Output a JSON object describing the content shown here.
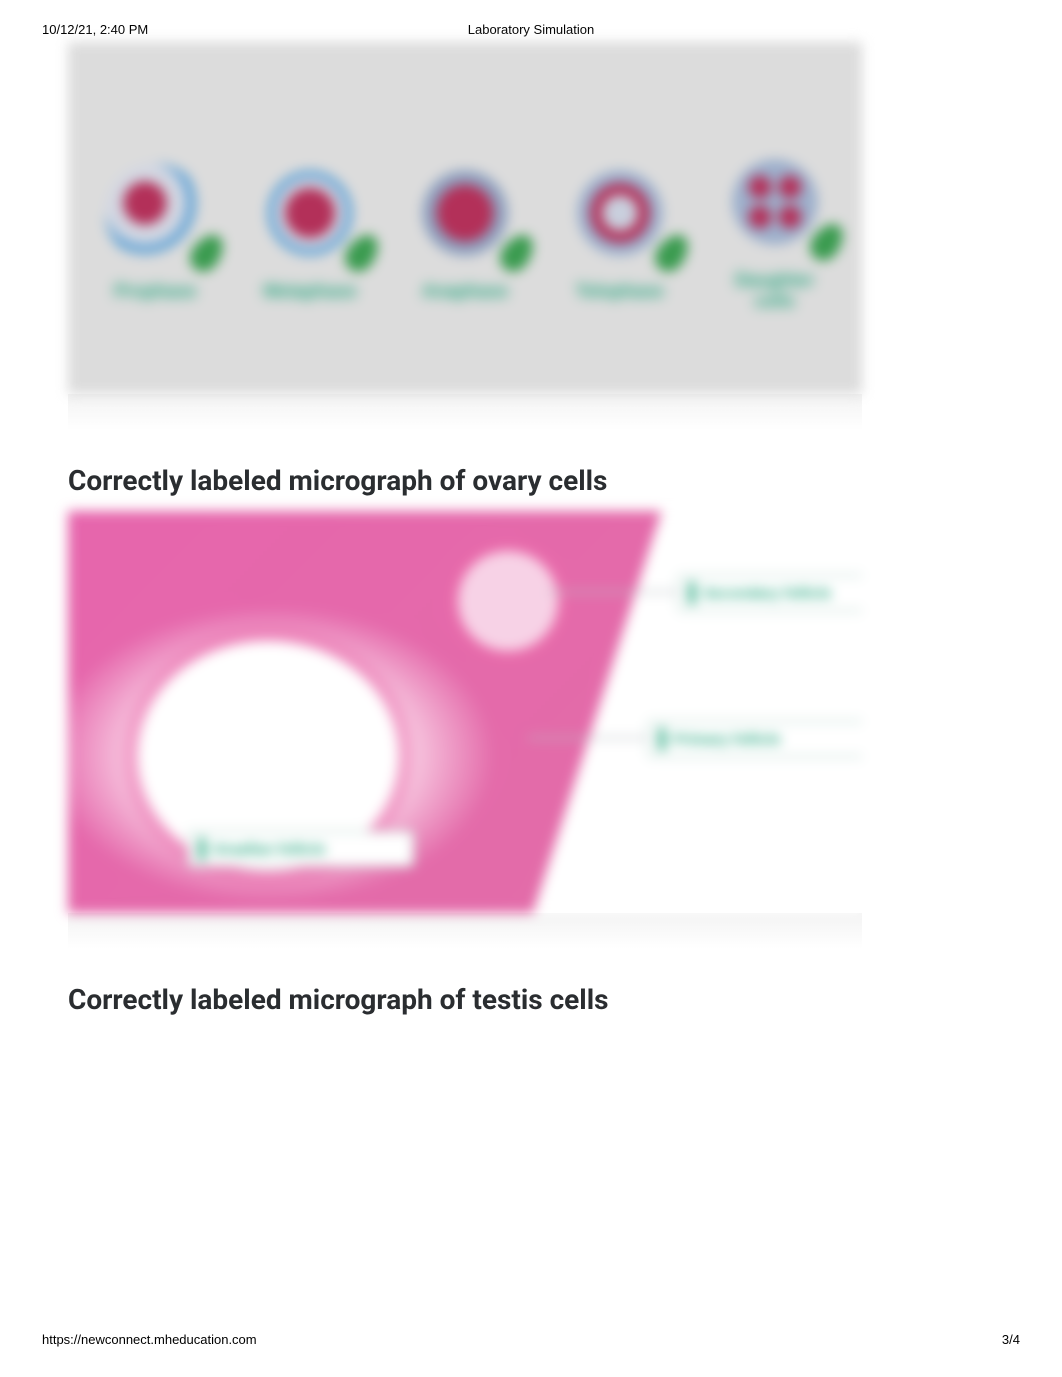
{
  "meta": {
    "datetime": "10/12/21, 2:40 PM",
    "header_title": "Laboratory Simulation",
    "footer_url": "https://newconnect.mheducation.com",
    "page_indicator": "3/4"
  },
  "figure1": {
    "background_color": "#dcdcdc",
    "phases": [
      {
        "label": "Prophase"
      },
      {
        "label": "Metaphase"
      },
      {
        "label": "Anaphase"
      },
      {
        "label": "Telophase"
      },
      {
        "label": "Daughter cells"
      }
    ],
    "label_color": "#1fa37a",
    "cell_membrane_color": "#6aa7d6",
    "cell_cytoplasm_color": "#d3d7e2",
    "chromatin_color": "#b33059",
    "leaf_color": "#3a9b4f"
  },
  "heading1": "Correctly labeled micrograph of ovary cells",
  "figure2": {
    "tissue_color": "#e765ad",
    "antrum_color": "#ffffff",
    "callouts": [
      {
        "label": "Secondary follicle"
      },
      {
        "label": "Primary follicle"
      },
      {
        "label": "Graafian follicle"
      }
    ],
    "callout_text_color": "#1fa37a"
  },
  "heading2": "Correctly labeled micrograph of testis cells"
}
